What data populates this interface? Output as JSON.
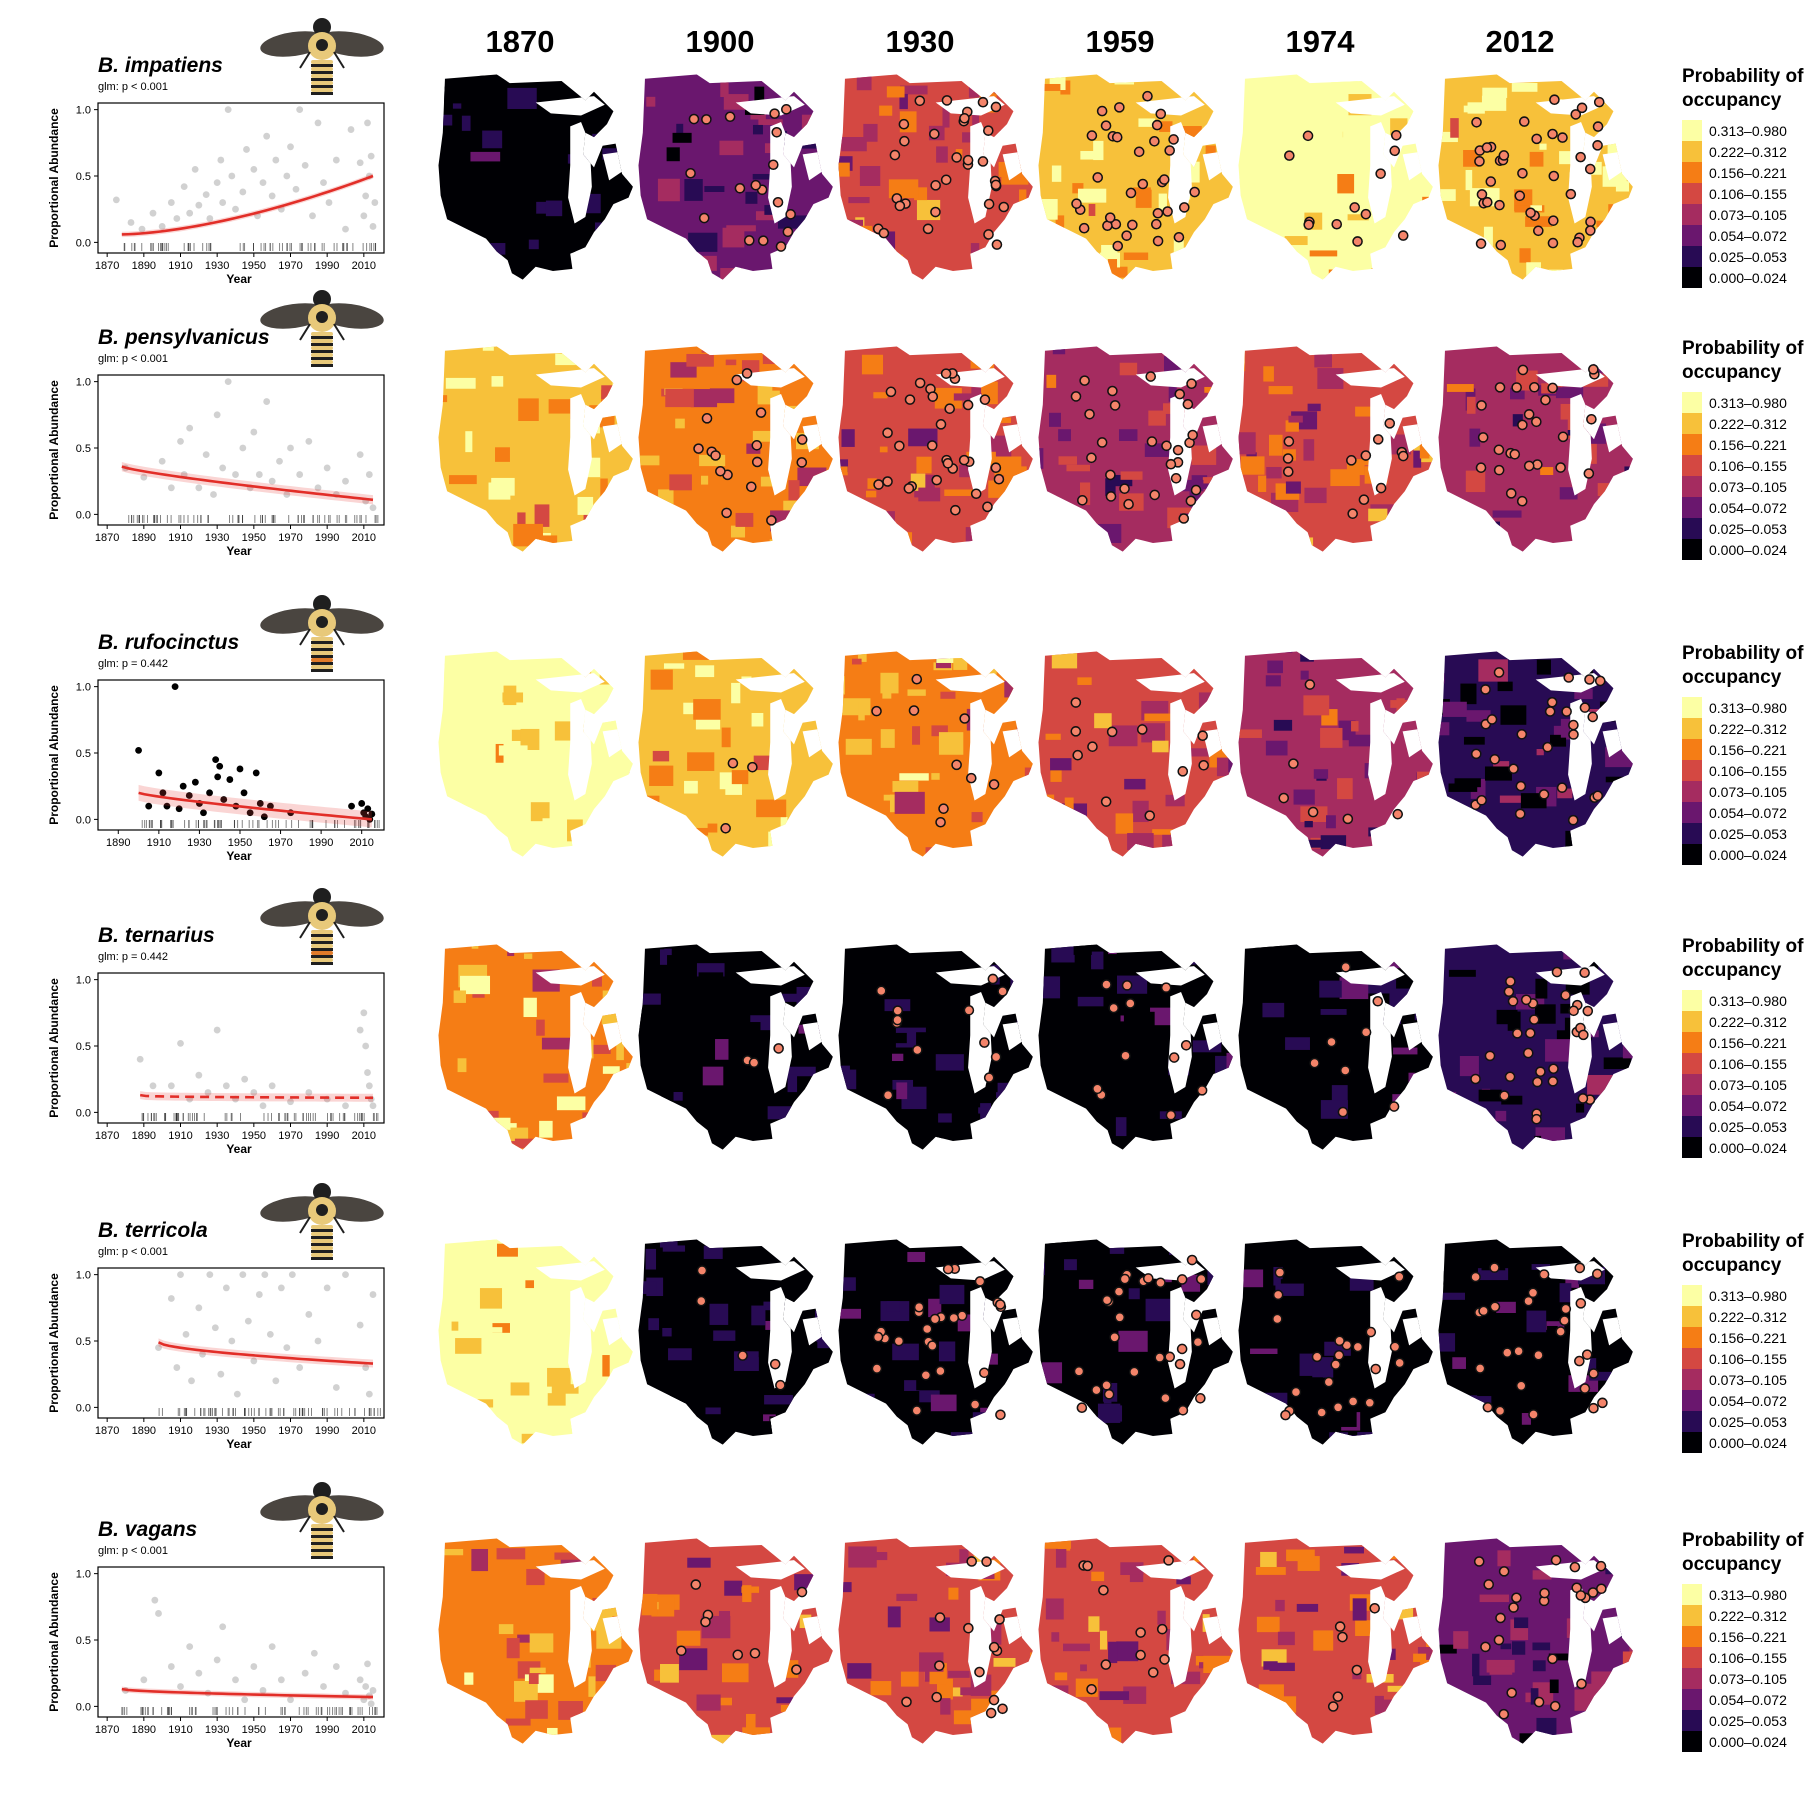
{
  "years": [
    "1870",
    "1900",
    "1930",
    "1959",
    "1974",
    "2012"
  ],
  "legend": {
    "title_line1": "Probability of",
    "title_line2": "occupancy",
    "classes": [
      "0.313–0.980",
      "0.222–0.312",
      "0.156–0.221",
      "0.106–0.155",
      "0.073–0.105",
      "0.054–0.072",
      "0.025–0.053",
      "0.000–0.024"
    ],
    "colors": [
      "#fcffa4",
      "#f7c13a",
      "#f57d15",
      "#d44842",
      "#a52c60",
      "#6a176e",
      "#280b54",
      "#000004"
    ]
  },
  "bee_colors": {
    "wing": "#4a4540",
    "body_dark": "#1f1f1f",
    "hair_yellow": "#e8c97a",
    "hair_orange": "#e07b2a"
  },
  "map_styles": {
    "lake_color": "#ffffff",
    "point_fill": "#f4846a",
    "point_stroke": "#111111",
    "occupancy_class_index_from_legend": true
  },
  "species": [
    {
      "name": "B. impatiens",
      "glm": "glm: p < 0.001",
      "bee_band": "yellow",
      "map_class": [
        7,
        5,
        3,
        1,
        0,
        1
      ],
      "points_per_map": [
        0,
        18,
        32,
        34,
        12,
        40
      ],
      "chart_data": {
        "type": "scatter",
        "xlabel": "Year",
        "ylabel": "Proportional Abundance",
        "xticks": [
          "1870",
          "1890",
          "1910",
          "1930",
          "1950",
          "1970",
          "1990",
          "2010"
        ],
        "xlim": [
          1865,
          2021
        ],
        "ylim": [
          -0.08,
          1.05
        ],
        "yticks": [
          "0.0",
          "0.5",
          "1.0"
        ],
        "points_style": "gray",
        "points": [
          [
            1875,
            0.32
          ],
          [
            1883,
            0.15
          ],
          [
            1889,
            0.1
          ],
          [
            1895,
            0.22
          ],
          [
            1900,
            0.12
          ],
          [
            1905,
            0.3
          ],
          [
            1908,
            0.18
          ],
          [
            1912,
            0.42
          ],
          [
            1915,
            0.22
          ],
          [
            1918,
            0.55
          ],
          [
            1920,
            0.28
          ],
          [
            1924,
            0.36
          ],
          [
            1926,
            0.18
          ],
          [
            1930,
            0.45
          ],
          [
            1932,
            0.62
          ],
          [
            1933,
            0.3
          ],
          [
            1936,
            1.0
          ],
          [
            1938,
            0.5
          ],
          [
            1940,
            0.25
          ],
          [
            1944,
            0.38
          ],
          [
            1946,
            0.7
          ],
          [
            1950,
            0.55
          ],
          [
            1952,
            0.2
          ],
          [
            1955,
            0.45
          ],
          [
            1957,
            0.8
          ],
          [
            1960,
            0.35
          ],
          [
            1962,
            0.62
          ],
          [
            1965,
            0.25
          ],
          [
            1968,
            0.5
          ],
          [
            1970,
            0.72
          ],
          [
            1973,
            0.4
          ],
          [
            1975,
            1.0
          ],
          [
            1978,
            0.58
          ],
          [
            1982,
            0.2
          ],
          [
            1985,
            0.9
          ],
          [
            1988,
            0.45
          ],
          [
            1991,
            0.3
          ],
          [
            1995,
            0.62
          ],
          [
            2000,
            0.1
          ],
          [
            2003,
            0.85
          ],
          [
            2008,
            0.6
          ],
          [
            2010,
            0.2
          ],
          [
            2011,
            0.35
          ],
          [
            2012,
            0.9
          ],
          [
            2013,
            0.5
          ],
          [
            2014,
            0.65
          ],
          [
            2015,
            0.12
          ],
          [
            2016,
            0.3
          ]
        ],
        "fit": {
          "model": "logistic",
          "start": 1878,
          "end": 2015,
          "y_start": 0.06,
          "y_end": 0.5,
          "curvature": 1.6,
          "dashed": false,
          "ribbon": 0.02
        }
      }
    },
    {
      "name": "B. pensylvanicus",
      "glm": "glm: p < 0.001",
      "bee_band": "yellow",
      "map_class": [
        1,
        2,
        3,
        4,
        3,
        4
      ],
      "points_per_map": [
        0,
        16,
        30,
        28,
        12,
        26
      ],
      "chart_data": {
        "type": "scatter",
        "xlabel": "Year",
        "ylabel": "Proportional Abundance",
        "xticks": [
          "1870",
          "1890",
          "1910",
          "1930",
          "1950",
          "1970",
          "1990",
          "2010"
        ],
        "xlim": [
          1865,
          2021
        ],
        "ylim": [
          -0.08,
          1.05
        ],
        "yticks": [
          "0.0",
          "0.5",
          "1.0"
        ],
        "points_style": "gray",
        "points": [
          [
            1880,
            0.35
          ],
          [
            1890,
            0.28
          ],
          [
            1900,
            0.4
          ],
          [
            1905,
            0.2
          ],
          [
            1910,
            0.55
          ],
          [
            1912,
            0.3
          ],
          [
            1915,
            0.65
          ],
          [
            1920,
            0.2
          ],
          [
            1924,
            0.45
          ],
          [
            1928,
            0.15
          ],
          [
            1930,
            0.75
          ],
          [
            1933,
            0.35
          ],
          [
            1936,
            1.0
          ],
          [
            1940,
            0.3
          ],
          [
            1944,
            0.5
          ],
          [
            1948,
            0.2
          ],
          [
            1950,
            0.62
          ],
          [
            1953,
            0.3
          ],
          [
            1957,
            0.85
          ],
          [
            1960,
            0.25
          ],
          [
            1964,
            0.4
          ],
          [
            1968,
            0.15
          ],
          [
            1970,
            0.5
          ],
          [
            1975,
            0.3
          ],
          [
            1980,
            0.55
          ],
          [
            1985,
            0.2
          ],
          [
            1990,
            0.35
          ],
          [
            1995,
            0.15
          ],
          [
            2000,
            0.25
          ],
          [
            2008,
            0.45
          ],
          [
            2011,
            0.1
          ],
          [
            2013,
            0.3
          ],
          [
            2015,
            0.05
          ]
        ],
        "fit": {
          "model": "logistic",
          "start": 1878,
          "end": 2015,
          "y_start": 0.36,
          "y_end": 0.11,
          "curvature": 0.8,
          "dashed": false,
          "ribbon": 0.035
        }
      }
    },
    {
      "name": "B. rufocinctus",
      "glm": "glm: p = 0.442",
      "bee_band": "orange",
      "map_class": [
        0,
        1,
        2,
        3,
        4,
        6
      ],
      "points_per_map": [
        0,
        3,
        9,
        11,
        6,
        28
      ],
      "chart_data": {
        "type": "scatter",
        "xlabel": "Year",
        "ylabel": "Proportional Abundance",
        "xticks": [
          "1890",
          "1910",
          "1930",
          "1950",
          "1970",
          "1990",
          "2010"
        ],
        "xlim": [
          1880,
          2021
        ],
        "ylim": [
          -0.08,
          1.05
        ],
        "yticks": [
          "0.0",
          "0.5",
          "1.0"
        ],
        "points_style": "black",
        "points": [
          [
            1900,
            0.52
          ],
          [
            1905,
            0.1
          ],
          [
            1910,
            0.35
          ],
          [
            1912,
            0.2
          ],
          [
            1914,
            0.1
          ],
          [
            1918,
            1.0
          ],
          [
            1920,
            0.08
          ],
          [
            1922,
            0.25
          ],
          [
            1925,
            0.18
          ],
          [
            1928,
            0.28
          ],
          [
            1930,
            0.12
          ],
          [
            1932,
            0.05
          ],
          [
            1935,
            0.2
          ],
          [
            1938,
            0.45
          ],
          [
            1939,
            0.32
          ],
          [
            1940,
            0.4
          ],
          [
            1942,
            0.15
          ],
          [
            1945,
            0.3
          ],
          [
            1948,
            0.1
          ],
          [
            1950,
            0.38
          ],
          [
            1952,
            0.2
          ],
          [
            1955,
            0.05
          ],
          [
            1958,
            0.35
          ],
          [
            1960,
            0.12
          ],
          [
            1962,
            0.02
          ],
          [
            1965,
            0.1
          ],
          [
            1975,
            0.05
          ],
          [
            2005,
            0.1
          ],
          [
            2010,
            0.12
          ],
          [
            2011,
            0.05
          ],
          [
            2012,
            0.02
          ],
          [
            2013,
            0.08
          ],
          [
            2014,
            0.0
          ],
          [
            2015,
            0.04
          ]
        ],
        "fit": {
          "model": "logistic",
          "start": 1900,
          "end": 2015,
          "y_start": 0.2,
          "y_end": 0.0,
          "curvature": 0.8,
          "dashed": false,
          "ribbon": 0.06
        }
      }
    },
    {
      "name": "B. ternarius",
      "glm": "glm: p = 0.442",
      "bee_band": "orange",
      "map_class": [
        2,
        7,
        7,
        7,
        7,
        6
      ],
      "points_per_map": [
        0,
        3,
        12,
        12,
        8,
        30
      ],
      "chart_data": {
        "type": "scatter",
        "xlabel": "Year",
        "ylabel": "Proportional Abundance",
        "xticks": [
          "1870",
          "1890",
          "1910",
          "1930",
          "1950",
          "1970",
          "1990",
          "2010"
        ],
        "xlim": [
          1865,
          2021
        ],
        "ylim": [
          -0.08,
          1.05
        ],
        "yticks": [
          "0.0",
          "0.5",
          "1.0"
        ],
        "points_style": "gray",
        "points": [
          [
            1888,
            0.4
          ],
          [
            1895,
            0.2
          ],
          [
            1905,
            0.2
          ],
          [
            1910,
            0.52
          ],
          [
            1915,
            0.1
          ],
          [
            1920,
            0.28
          ],
          [
            1925,
            0.15
          ],
          [
            1930,
            0.62
          ],
          [
            1935,
            0.2
          ],
          [
            1940,
            0.1
          ],
          [
            1945,
            0.25
          ],
          [
            1950,
            0.15
          ],
          [
            1955,
            0.05
          ],
          [
            1960,
            0.2
          ],
          [
            1970,
            0.08
          ],
          [
            1980,
            0.15
          ],
          [
            1990,
            0.1
          ],
          [
            2000,
            0.05
          ],
          [
            2008,
            0.62
          ],
          [
            2010,
            0.75
          ],
          [
            2011,
            0.5
          ],
          [
            2012,
            0.3
          ],
          [
            2013,
            0.2
          ],
          [
            2014,
            0.1
          ],
          [
            2015,
            0.05
          ]
        ],
        "fit": {
          "model": "logistic",
          "start": 1888,
          "end": 2015,
          "y_start": 0.13,
          "y_end": 0.11,
          "curvature": 0.3,
          "dashed": true,
          "ribbon": 0.03
        }
      }
    },
    {
      "name": "B. terricola",
      "glm": "glm: p < 0.001",
      "bee_band": "yellow",
      "map_class": [
        0,
        7,
        7,
        7,
        7,
        7
      ],
      "points_per_map": [
        0,
        5,
        26,
        28,
        22,
        28
      ],
      "chart_data": {
        "type": "scatter",
        "xlabel": "Year",
        "ylabel": "Proportional Abundance",
        "xticks": [
          "1870",
          "1890",
          "1910",
          "1930",
          "1950",
          "1970",
          "1990",
          "2010"
        ],
        "xlim": [
          1865,
          2021
        ],
        "ylim": [
          -0.08,
          1.05
        ],
        "yticks": [
          "0.0",
          "0.5",
          "1.0"
        ],
        "points_style": "gray",
        "points": [
          [
            1898,
            0.45
          ],
          [
            1905,
            0.82
          ],
          [
            1908,
            0.3
          ],
          [
            1910,
            1.0
          ],
          [
            1913,
            0.55
          ],
          [
            1916,
            0.2
          ],
          [
            1920,
            0.75
          ],
          [
            1922,
            0.4
          ],
          [
            1926,
            1.0
          ],
          [
            1929,
            0.6
          ],
          [
            1932,
            0.25
          ],
          [
            1935,
            0.9
          ],
          [
            1938,
            0.5
          ],
          [
            1941,
            0.1
          ],
          [
            1944,
            1.0
          ],
          [
            1947,
            0.65
          ],
          [
            1950,
            0.35
          ],
          [
            1953,
            0.85
          ],
          [
            1956,
            1.0
          ],
          [
            1959,
            0.55
          ],
          [
            1962,
            0.2
          ],
          [
            1965,
            0.9
          ],
          [
            1968,
            0.45
          ],
          [
            1971,
            1.0
          ],
          [
            1975,
            0.3
          ],
          [
            1980,
            0.7
          ],
          [
            1985,
            0.5
          ],
          [
            1990,
            0.9
          ],
          [
            1995,
            0.15
          ],
          [
            2000,
            1.0
          ],
          [
            2008,
            0.62
          ],
          [
            2011,
            0.3
          ],
          [
            2013,
            0.1
          ],
          [
            2015,
            0.85
          ]
        ],
        "fit": {
          "model": "logistic",
          "start": 1898,
          "end": 2015,
          "y_start": 0.49,
          "y_end": 0.33,
          "curvature": 0.6,
          "dashed": false,
          "ribbon": 0.03
        }
      }
    },
    {
      "name": "B. vagans",
      "glm": "glm: p < 0.001",
      "bee_band": "yellow",
      "map_class": [
        2,
        3,
        3,
        3,
        3,
        5
      ],
      "points_per_map": [
        0,
        8,
        14,
        11,
        6,
        24
      ],
      "chart_data": {
        "type": "scatter",
        "xlabel": "Year",
        "ylabel": "Proportional Abundance",
        "xticks": [
          "1870",
          "1890",
          "1910",
          "1930",
          "1950",
          "1970",
          "1990",
          "2010"
        ],
        "xlim": [
          1865,
          2021
        ],
        "ylim": [
          -0.08,
          1.05
        ],
        "yticks": [
          "0.0",
          "0.5",
          "1.0"
        ],
        "points_style": "gray",
        "points": [
          [
            1880,
            0.12
          ],
          [
            1890,
            0.2
          ],
          [
            1896,
            0.8
          ],
          [
            1898,
            0.7
          ],
          [
            1905,
            0.3
          ],
          [
            1910,
            0.15
          ],
          [
            1915,
            0.45
          ],
          [
            1920,
            0.25
          ],
          [
            1925,
            0.1
          ],
          [
            1930,
            0.35
          ],
          [
            1933,
            0.6
          ],
          [
            1940,
            0.2
          ],
          [
            1945,
            0.05
          ],
          [
            1950,
            0.3
          ],
          [
            1955,
            0.12
          ],
          [
            1960,
            0.45
          ],
          [
            1965,
            0.2
          ],
          [
            1970,
            0.05
          ],
          [
            1978,
            0.25
          ],
          [
            1983,
            0.4
          ],
          [
            1988,
            0.15
          ],
          [
            1995,
            0.3
          ],
          [
            2000,
            0.1
          ],
          [
            2008,
            0.2
          ],
          [
            2010,
            0.05
          ],
          [
            2011,
            0.15
          ],
          [
            2012,
            0.32
          ],
          [
            2013,
            0.08
          ],
          [
            2014,
            0.02
          ],
          [
            2015,
            0.12
          ]
        ],
        "fit": {
          "model": "logistic",
          "start": 1878,
          "end": 2015,
          "y_start": 0.13,
          "y_end": 0.07,
          "curvature": 0.6,
          "dashed": false,
          "ribbon": 0.02
        }
      }
    }
  ]
}
